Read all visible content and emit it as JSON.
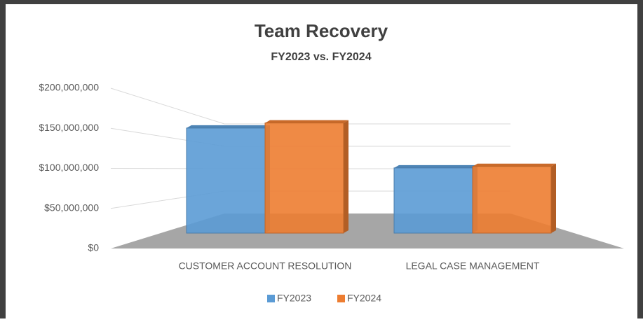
{
  "chart_data": {
    "type": "bar3d",
    "title": "Team Recovery",
    "subtitle": "FY2023 vs. FY2024",
    "categories": [
      "CUSTOMER ACCOUNT RESOLUTION",
      "LEGAL CASE MANAGEMENT"
    ],
    "series": [
      {
        "name": "FY2023",
        "color": "#5b9bd5",
        "values": [
          145000000,
          90000000
        ]
      },
      {
        "name": "FY2024",
        "color": "#ed7d31",
        "values": [
          152000000,
          92000000
        ]
      }
    ],
    "ylim": [
      0,
      200000000
    ],
    "yticks": [
      {
        "value": 0,
        "label": "$0"
      },
      {
        "value": 50000000,
        "label": "$50,000,000"
      },
      {
        "value": 100000000,
        "label": "$100,000,000"
      },
      {
        "value": 150000000,
        "label": "$150,000,000"
      },
      {
        "value": 200000000,
        "label": "$200,000,000"
      }
    ],
    "grid": true,
    "legend": "bottom"
  }
}
